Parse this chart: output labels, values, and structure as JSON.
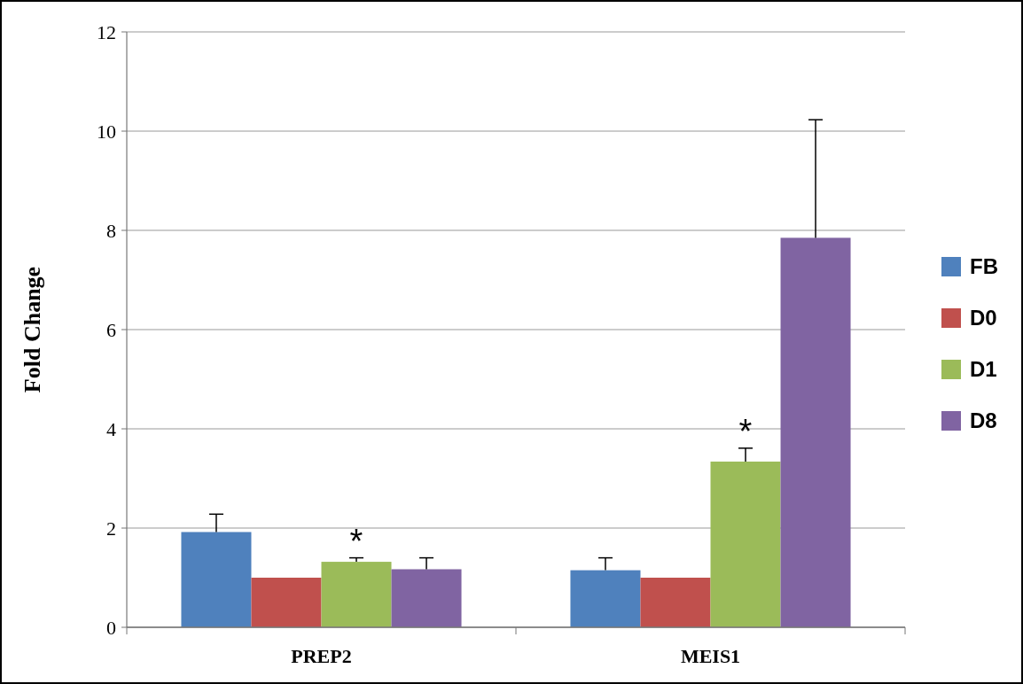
{
  "chart_data": {
    "type": "bar",
    "ylabel": "Fold Change",
    "categories": [
      "PREP2",
      "MEIS1"
    ],
    "series": [
      {
        "name": "FB",
        "color": "#4f81bd",
        "values": [
          1.92,
          1.15
        ],
        "errors": [
          0.36,
          0.25
        ]
      },
      {
        "name": "D0",
        "color": "#c0504d",
        "values": [
          1.0,
          1.0
        ]
      },
      {
        "name": "D1",
        "color": "#9bbb59",
        "values": [
          1.32,
          3.34
        ],
        "errors": [
          0.08,
          0.27
        ]
      },
      {
        "name": "D8",
        "color": "#8064a2",
        "values": [
          1.17,
          7.85
        ],
        "errors": [
          0.23,
          2.38
        ]
      }
    ],
    "ylim": [
      0,
      12
    ],
    "yticks": [
      0,
      2,
      4,
      6,
      8,
      10,
      12
    ],
    "grid": "y",
    "legend": "right",
    "annotations": [
      "*",
      "*"
    ]
  }
}
